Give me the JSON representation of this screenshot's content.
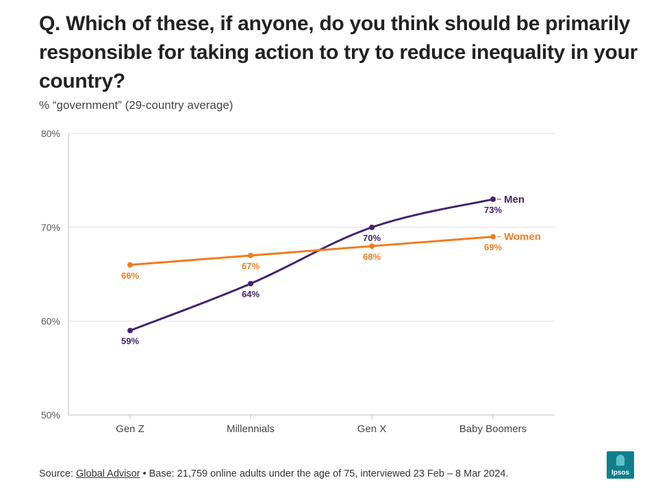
{
  "title": "Q. Which of these, if anyone, do you think should be primarily responsible for taking action to try to reduce inequality in your country?",
  "subtitle": "% “government” (29-country average)",
  "chart_data": {
    "type": "line",
    "categories": [
      "Gen Z",
      "Millennials",
      "Gen X",
      "Baby Boomers"
    ],
    "series": [
      {
        "name": "Men",
        "values": [
          59,
          64,
          70,
          73
        ],
        "color": "#44226e"
      },
      {
        "name": "Women",
        "values": [
          66,
          67,
          68,
          69
        ],
        "color": "#f07c1f"
      }
    ],
    "ylim": [
      50,
      80
    ],
    "yticks": [
      "50%",
      "60%",
      "70%",
      "80%"
    ],
    "ytick_values": [
      50,
      60,
      70,
      80
    ],
    "data_labels": {
      "Men": [
        "59%",
        "64%",
        "70%",
        "73%"
      ],
      "Women": [
        "66%",
        "67%",
        "68%",
        "69%"
      ]
    },
    "grid": true,
    "legend": "end-of-line labels"
  },
  "footer": {
    "prefix": "Source: ",
    "link": "Global Advisor",
    "rest": " • Base: 21,759 online adults under the age of 75, interviewed 23 Feb – 8 Mar 2024."
  },
  "logo": {
    "text": "Ipsos",
    "color": "#0f7f8c"
  }
}
